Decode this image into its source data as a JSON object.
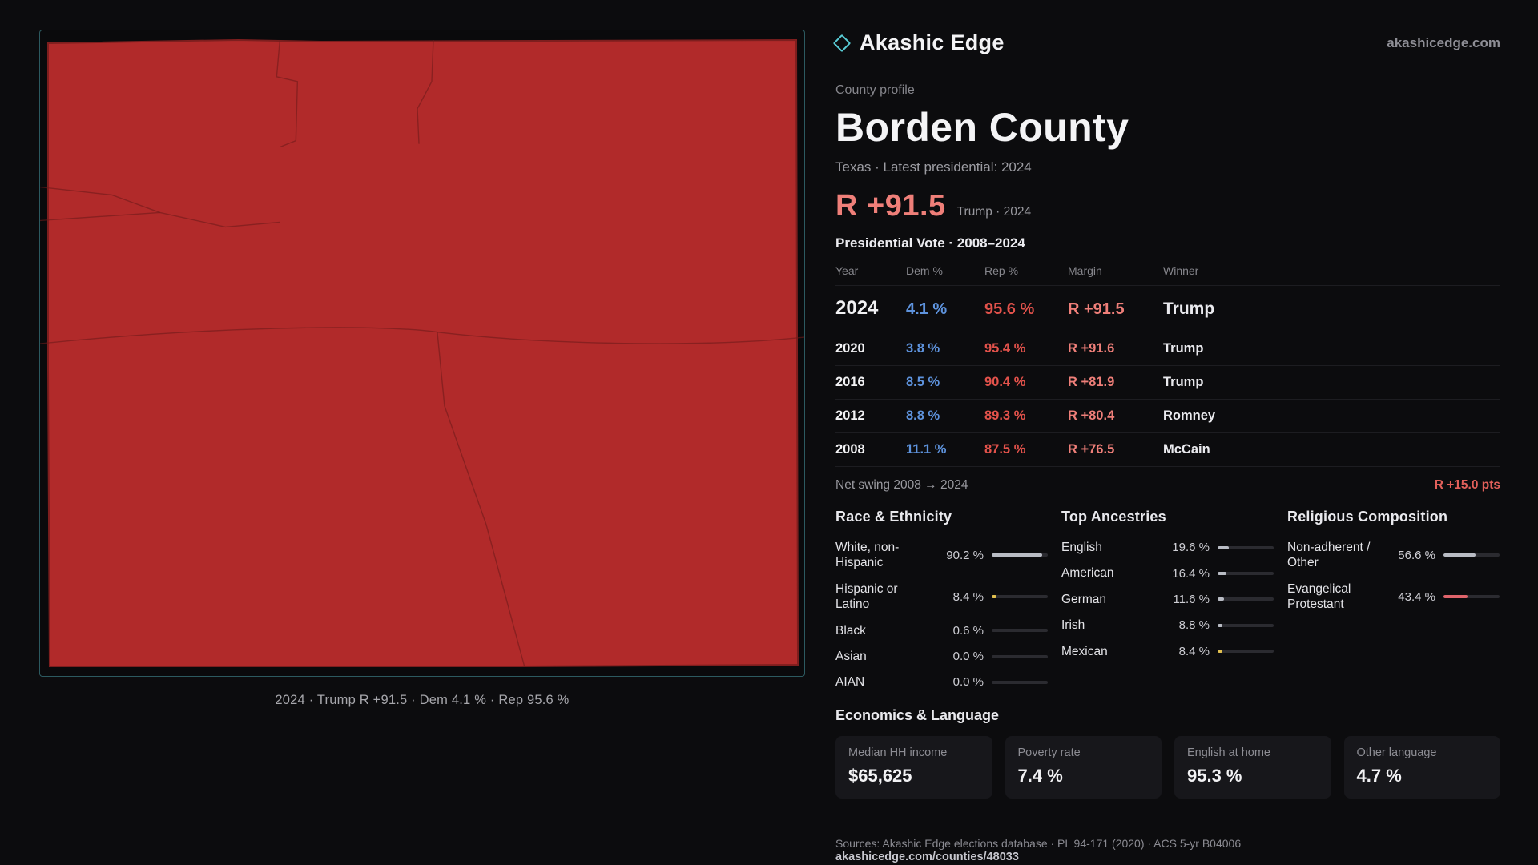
{
  "colors": {
    "dem": "#5e93dd",
    "rep": "#e2524b",
    "margin": "#ef7f79",
    "swing": "#e2605a",
    "accent": "#59cdd6",
    "gold": "#e2c14f",
    "neutral-bar": "#b9bcc4",
    "bar-red": "#e0646b",
    "map-fill": "#b12a2a",
    "map-line": "#6e1b1b"
  },
  "header": {
    "brand": "Akashic Edge",
    "domain": "akashicedge.com"
  },
  "map": {
    "caption": "2024 · Trump R +91.5 · Dem 4.1 % · Rep 95.6 %"
  },
  "profile": {
    "kicker": "County profile",
    "title": "Borden County",
    "subtitle": "Texas · Latest presidential: 2024",
    "headline_value": "R +91.5",
    "headline_note": "Trump · 2024"
  },
  "vote_table": {
    "title": "Presidential Vote · 2008–2024",
    "headers": {
      "year": "Year",
      "dem": "Dem %",
      "rep": "Rep %",
      "margin": "Margin",
      "winner": "Winner"
    },
    "rows": [
      {
        "year": "2024",
        "dem": "4.1 %",
        "rep": "95.6 %",
        "margin": "R +91.5",
        "winner": "Trump"
      },
      {
        "year": "2020",
        "dem": "3.8 %",
        "rep": "95.4 %",
        "margin": "R +91.6",
        "winner": "Trump"
      },
      {
        "year": "2016",
        "dem": "8.5 %",
        "rep": "90.4 %",
        "margin": "R +81.9",
        "winner": "Trump"
      },
      {
        "year": "2012",
        "dem": "8.8 %",
        "rep": "89.3 %",
        "margin": "R +80.4",
        "winner": "Romney"
      },
      {
        "year": "2008",
        "dem": "11.1 %",
        "rep": "87.5 %",
        "margin": "R +76.5",
        "winner": "McCain"
      }
    ]
  },
  "net_swing": {
    "label": "Net swing 2008 → 2024",
    "value": "R +15.0 pts"
  },
  "race": {
    "title": "Race & Ethnicity",
    "rows": [
      {
        "label": "White, non-Hispanic",
        "value": "90.2 %",
        "pct": 90.2
      },
      {
        "label": "Hispanic or Latino",
        "value": "8.4 %",
        "pct": 8.4
      },
      {
        "label": "Black",
        "value": "0.6 %",
        "pct": 0.6
      },
      {
        "label": "Asian",
        "value": "0.0 %",
        "pct": 0
      },
      {
        "label": "AIAN",
        "value": "0.0 %",
        "pct": 0
      }
    ]
  },
  "ancestries": {
    "title": "Top Ancestries",
    "rows": [
      {
        "label": "English",
        "value": "19.6 %",
        "pct": 19.6
      },
      {
        "label": "American",
        "value": "16.4 %",
        "pct": 16.4
      },
      {
        "label": "German",
        "value": "11.6 %",
        "pct": 11.6
      },
      {
        "label": "Irish",
        "value": "8.8 %",
        "pct": 8.8
      },
      {
        "label": "Mexican",
        "value": "8.4 %",
        "pct": 8.4
      }
    ]
  },
  "religion": {
    "title": "Religious Composition",
    "rows": [
      {
        "label": "Non-adherent / Other",
        "value": "56.6 %",
        "pct": 56.6
      },
      {
        "label": "Evangelical Protestant",
        "value": "43.4 %",
        "pct": 43.4
      }
    ]
  },
  "economics": {
    "title": "Economics & Language",
    "stats": [
      {
        "label": "Median HH income",
        "value": "$65,625"
      },
      {
        "label": "Poverty rate",
        "value": "7.4 %"
      },
      {
        "label": "English at home",
        "value": "95.3 %"
      },
      {
        "label": "Other language",
        "value": "4.7 %"
      }
    ]
  },
  "footer": {
    "sources": "Sources: Akashic Edge elections database · PL 94-171 (2020) · ACS 5-yr B04006",
    "permalink": "akashicedge.com/counties/48033"
  }
}
